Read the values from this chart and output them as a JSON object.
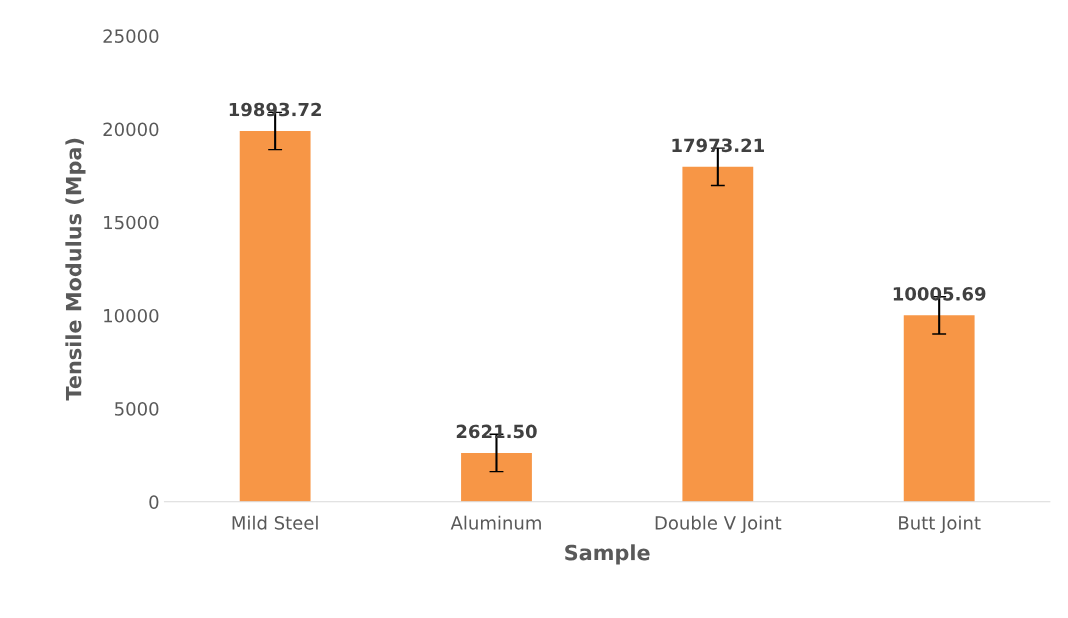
{
  "chart_data": {
    "type": "bar",
    "xlabel": "Sample",
    "ylabel": "Tensile Modulus (Mpa)",
    "categories": [
      "Mild Steel",
      "Aluminum",
      "Double V Joint",
      "Butt Joint"
    ],
    "values": [
      19893.72,
      2621.5,
      17973.21,
      10005.69
    ],
    "value_labels": [
      "19893.72",
      "2621.50",
      "17973.21",
      "10005.69"
    ],
    "errors": [
      1000,
      1000,
      1000,
      1000
    ],
    "color": "#f79646",
    "ylim": [
      0,
      25000
    ],
    "yticks": [
      0,
      5000,
      10000,
      15000,
      20000,
      25000
    ],
    "grid": false,
    "legend": false
  }
}
